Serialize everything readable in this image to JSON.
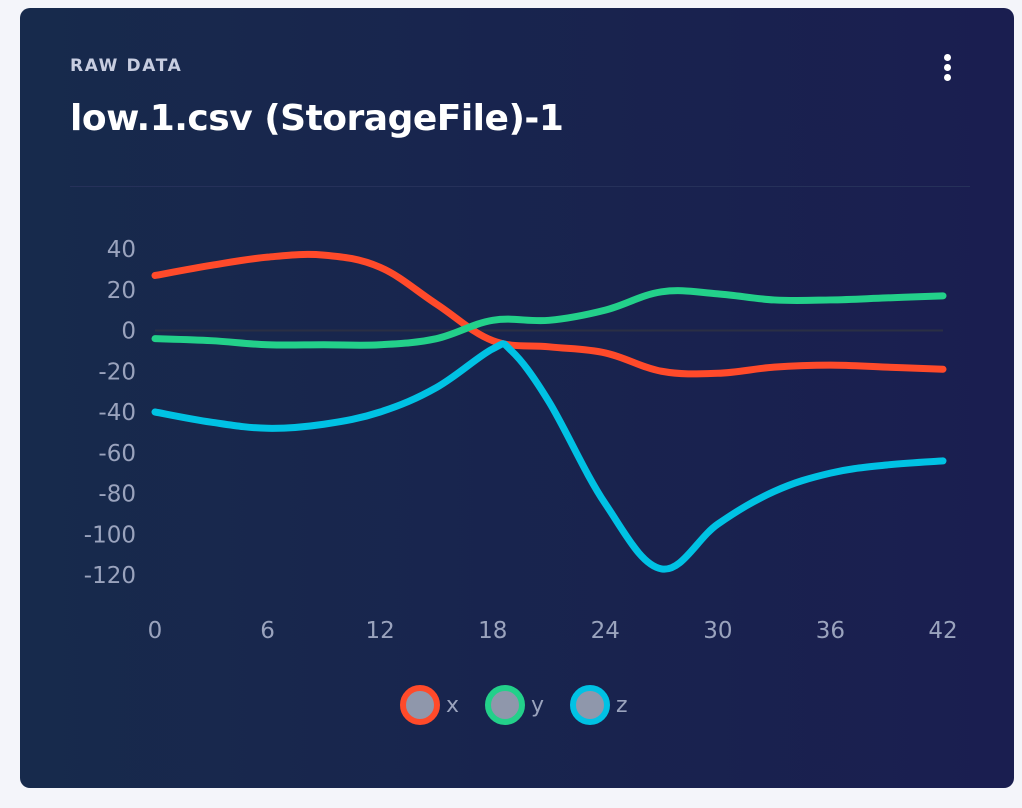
{
  "card": {
    "subtitle": "RAW DATA",
    "title": "low.1.csv (StorageFile)-1",
    "menu_icon": "vertical-ellipsis-icon"
  },
  "chart_data": {
    "type": "line",
    "x_ticks": [
      0,
      6,
      12,
      18,
      24,
      30,
      36,
      42
    ],
    "y_ticks": [
      40,
      20,
      0,
      -20,
      -40,
      -60,
      -80,
      -100,
      -120
    ],
    "xlim": [
      0,
      42
    ],
    "ylim": [
      -120,
      40
    ],
    "grid": false,
    "zero_line": true,
    "legend_position": "bottom-center",
    "series": [
      {
        "name": "x",
        "color": "#ff4a2a",
        "x": [
          0,
          3,
          6,
          9,
          12,
          15,
          18,
          21,
          24,
          27,
          30,
          33,
          36,
          39,
          42
        ],
        "y": [
          27,
          32,
          36,
          37,
          31,
          13,
          -5,
          -8,
          -11,
          -20,
          -21,
          -18,
          -17,
          -18,
          -19
        ]
      },
      {
        "name": "y",
        "color": "#23d08a",
        "x": [
          0,
          3,
          6,
          9,
          12,
          15,
          18,
          21,
          24,
          27,
          30,
          33,
          36,
          39,
          42
        ],
        "y": [
          -4,
          -5,
          -7,
          -7,
          -7,
          -4,
          5,
          5,
          10,
          19,
          18,
          15,
          15,
          16,
          17
        ]
      },
      {
        "name": "z",
        "color": "#00c2e4",
        "x": [
          0,
          3,
          6,
          9,
          12,
          15,
          18,
          19,
          21,
          24,
          27,
          30,
          33,
          36,
          39,
          42
        ],
        "y": [
          -40,
          -45,
          -48,
          -46,
          -40,
          -28,
          -9,
          -10,
          -35,
          -85,
          -117,
          -95,
          -79,
          -70,
          -66,
          -64
        ]
      }
    ]
  }
}
